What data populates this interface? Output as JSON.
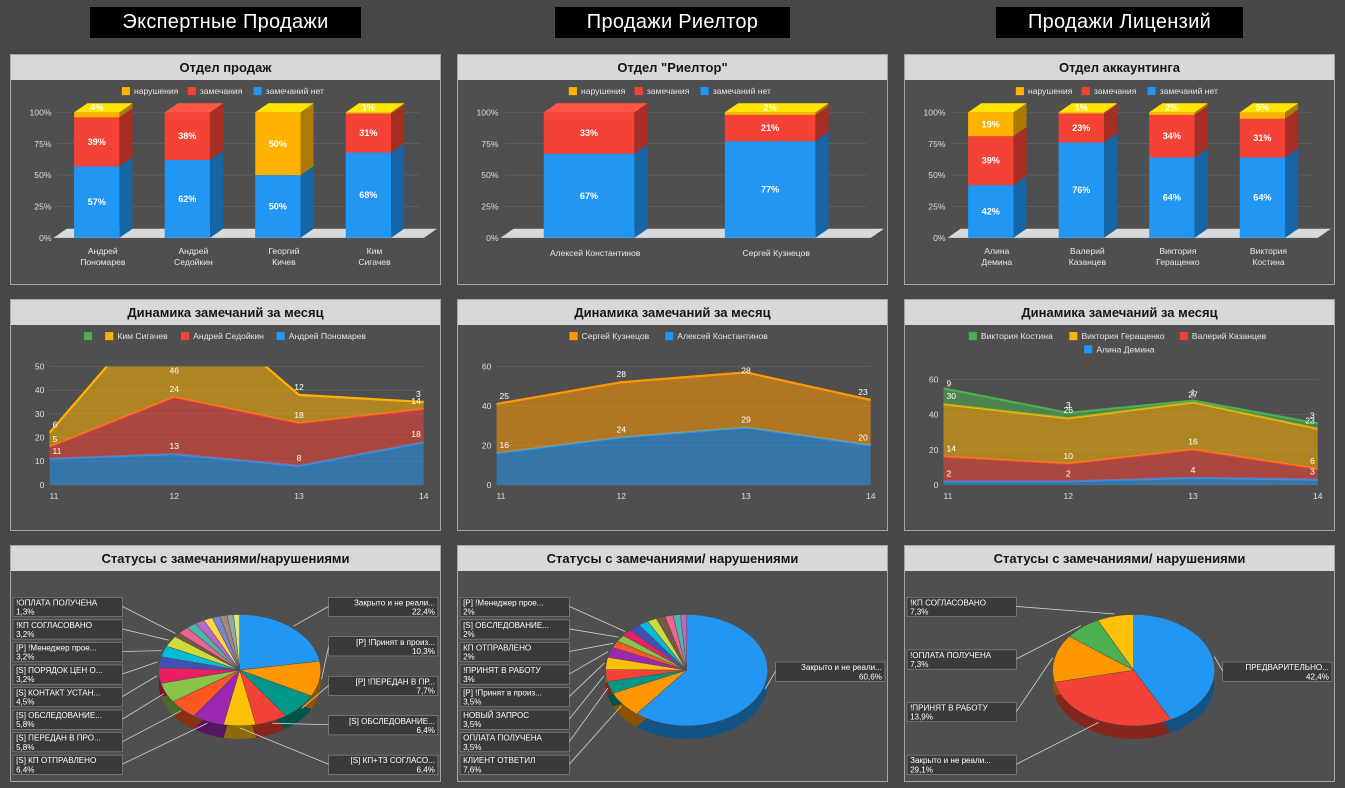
{
  "headers": [
    "Экспертные Продажи",
    "Продажи Риелтор",
    "Продажи Лицензий"
  ],
  "chart_data": [
    {
      "type": "bar",
      "title": "Отдел продаж",
      "stacked_percent": true,
      "y_ticks": [
        "0%",
        "25%",
        "50%",
        "75%",
        "100%"
      ],
      "legend": [
        {
          "label": "нарушения",
          "color": "#FFB300"
        },
        {
          "label": "замечания",
          "color": "#F44336"
        },
        {
          "label": "замечаний нет",
          "color": "#2196F3"
        }
      ],
      "categories": [
        "Андрей Пономарев",
        "Андрей Седойкин",
        "Георгий Кичев",
        "Ким Сигачев"
      ],
      "series": [
        {
          "name": "замечаний нет",
          "color": "#2196F3",
          "values": [
            57,
            62,
            50,
            68
          ]
        },
        {
          "name": "замечания",
          "color": "#F44336",
          "values": [
            39,
            38,
            0,
            31
          ]
        },
        {
          "name": "нарушения",
          "color": "#FFB300",
          "values": [
            4,
            0,
            50,
            1
          ]
        }
      ]
    },
    {
      "type": "bar",
      "title": "Отдел \"Риелтор\"",
      "stacked_percent": true,
      "y_ticks": [
        "0%",
        "25%",
        "50%",
        "75%",
        "100%"
      ],
      "legend": [
        {
          "label": "нарушения",
          "color": "#FFB300"
        },
        {
          "label": "замечания",
          "color": "#F44336"
        },
        {
          "label": "замечаний нет",
          "color": "#2196F3"
        }
      ],
      "categories": [
        "Алексей Константинов",
        "Сергей Кузнецов"
      ],
      "series": [
        {
          "name": "замечаний нет",
          "color": "#2196F3",
          "values": [
            67,
            77
          ]
        },
        {
          "name": "замечания",
          "color": "#F44336",
          "values": [
            33,
            21
          ]
        },
        {
          "name": "нарушения",
          "color": "#FFB300",
          "values": [
            0,
            2
          ]
        }
      ]
    },
    {
      "type": "bar",
      "title": "Отдел аккаунтинга",
      "stacked_percent": true,
      "y_ticks": [
        "0%",
        "25%",
        "50%",
        "75%",
        "100%"
      ],
      "legend": [
        {
          "label": "нарушения",
          "color": "#FFB300"
        },
        {
          "label": "замечания",
          "color": "#F44336"
        },
        {
          "label": "замечаний нет",
          "color": "#2196F3"
        }
      ],
      "categories": [
        "Алина Демина",
        "Валерий Казанцев",
        "Виктория Геращенко",
        "Виктория Костина"
      ],
      "series": [
        {
          "name": "замечаний нет",
          "color": "#2196F3",
          "values": [
            42,
            76,
            64,
            64
          ]
        },
        {
          "name": "замечания",
          "color": "#F44336",
          "values": [
            39,
            23,
            34,
            31
          ]
        },
        {
          "name": "нарушения",
          "color": "#FFB300",
          "values": [
            19,
            1,
            2,
            5
          ]
        }
      ]
    },
    {
      "type": "area",
      "title": "Динамика замечаний за месяц",
      "x": [
        11,
        12,
        13,
        14
      ],
      "ylim": [
        0,
        50
      ],
      "y_step": 10,
      "legend_rows": [
        [
          {
            "label": "",
            "color": "#4CAF50"
          },
          {
            "label": "Ким Сигачев",
            "color": "#FFB300"
          },
          {
            "label": "Андрей Седойкин",
            "color": "#F44336"
          },
          {
            "label": "Андрей Пономарев",
            "color": "#2196F3"
          }
        ]
      ],
      "series": [
        {
          "name": "Андрей Пономарев",
          "color": "#2196F3",
          "values": [
            11,
            13,
            8,
            18
          ]
        },
        {
          "name": "Андрей Седойкин",
          "color": "#F44336",
          "values": [
            5,
            24,
            18,
            14
          ]
        },
        {
          "name": "Ким Сигачев",
          "color": "#FFB300",
          "values": [
            6,
            46,
            12,
            3
          ]
        }
      ]
    },
    {
      "type": "area",
      "title": "Динамика замечаний за месяц",
      "x": [
        11,
        12,
        13,
        14
      ],
      "ylim": [
        0,
        60
      ],
      "y_step": 20,
      "legend_rows": [
        [
          {
            "label": "Сергей Кузнецов",
            "color": "#FF9800"
          },
          {
            "label": "Алексей Константинов",
            "color": "#2196F3"
          }
        ]
      ],
      "series": [
        {
          "name": "Алексей Константинов",
          "color": "#2196F3",
          "values": [
            16,
            24,
            29,
            20
          ]
        },
        {
          "name": "Сергей Кузнецов",
          "color": "#FF9800",
          "values": [
            25,
            28,
            28,
            23
          ]
        }
      ]
    },
    {
      "type": "area",
      "title": "Динамика замечаний за месяц",
      "x": [
        11,
        12,
        13,
        14
      ],
      "ylim": [
        0,
        60
      ],
      "y_step": 20,
      "legend_rows": [
        [
          {
            "label": "Виктория Костина",
            "color": "#4CAF50"
          },
          {
            "label": "Виктория Геращенко",
            "color": "#FFB300"
          },
          {
            "label": "Валерий Казанцев",
            "color": "#F44336"
          }
        ],
        [
          {
            "label": "Алина Демина",
            "color": "#2196F3"
          }
        ]
      ],
      "series": [
        {
          "name": "Алина Демина",
          "color": "#2196F3",
          "values": [
            2,
            2,
            4,
            3
          ]
        },
        {
          "name": "Валерий Казанцев",
          "color": "#F44336",
          "values": [
            14,
            10,
            16,
            6
          ]
        },
        {
          "name": "Виктория Геращенко",
          "color": "#FFB300",
          "values": [
            30,
            26,
            27,
            23
          ]
        },
        {
          "name": "Виктория Костина",
          "color": "#4CAF50",
          "values": [
            9,
            3,
            1,
            3
          ]
        }
      ]
    },
    {
      "type": "pie",
      "title": "Статусы с замечаниями/нарушениями",
      "slices": [
        {
          "label": "Закрыто и не реали...",
          "value": 22.4,
          "color": "#2196F3"
        },
        {
          "label": "[P] !Принят в произ...",
          "value": 10.3,
          "color": "#FF9800"
        },
        {
          "label": "[P] !ПЕРЕДАН В ПР...",
          "value": 7.7,
          "color": "#009688"
        },
        {
          "label": "[S] ОБСЛЕДОВАНИЕ...",
          "value": 6.4,
          "color": "#F44336"
        },
        {
          "label": "[S] КП+ТЗ СОГЛАСО...",
          "value": 6.4,
          "color": "#FFC107"
        },
        {
          "label": "[S] КП ОТПРАВЛЕНО",
          "value": 6.4,
          "color": "#9C27B0"
        },
        {
          "label": "[S] ПЕРЕДАН В ПРО...",
          "value": 5.8,
          "color": "#FF5722"
        },
        {
          "label": "[S] ОБСЛЕДОВАНИЕ...",
          "value": 5.8,
          "color": "#8BC34A"
        },
        {
          "label": "[S] КОНТАКТ УСТАН...",
          "value": 4.5,
          "color": "#E91E63"
        },
        {
          "label": "[S] ПОРЯДОК ЦЕН О...",
          "value": 3.2,
          "color": "#3F51B5"
        },
        {
          "label": "[P] !Менеджер прое...",
          "value": 3.2,
          "color": "#00BCD4"
        },
        {
          "label": "!КП СОГЛАСОВАНО",
          "value": 3.2,
          "color": "#CDDC39"
        },
        {
          "label": "!ОПЛАТА ПОЛУЧЕНА",
          "value": 1.3,
          "color": "#795548"
        },
        {
          "label": "",
          "value": 2.2,
          "color": "#F06292"
        },
        {
          "label": "",
          "value": 2.0,
          "color": "#4DB6AC"
        },
        {
          "label": "",
          "value": 1.9,
          "color": "#BA68C8"
        },
        {
          "label": "",
          "value": 1.8,
          "color": "#FFD54F"
        },
        {
          "label": "",
          "value": 1.6,
          "color": "#7986CB"
        },
        {
          "label": "",
          "value": 1.4,
          "color": "#A1887F"
        },
        {
          "label": "",
          "value": 1.3,
          "color": "#90A4AE"
        },
        {
          "label": "",
          "value": 1.2,
          "color": "#DCE775"
        }
      ]
    },
    {
      "type": "pie",
      "title": "Статусы с замечаниями/ нарушениями",
      "slices": [
        {
          "label": "Закрыто и не реали...",
          "value": 60.6,
          "color": "#2196F3"
        },
        {
          "label": "КЛИЕНТ ОТВЕТИЛ",
          "value": 7.6,
          "color": "#FF9800"
        },
        {
          "label": "ОПЛАТА ПОЛУЧЕНА",
          "value": 3.5,
          "color": "#009688"
        },
        {
          "label": "НОВЫЙ ЗАПРОС",
          "value": 3.5,
          "color": "#F44336"
        },
        {
          "label": "[P] !Принят в произ...",
          "value": 3.5,
          "color": "#FFC107"
        },
        {
          "label": "!ПРИНЯТ В РАБОТУ",
          "value": 3.0,
          "color": "#9C27B0"
        },
        {
          "label": "КП ОТПРАВЛЕНО",
          "value": 2.0,
          "color": "#FF5722"
        },
        {
          "label": "[S] ОБСЛЕДОВАНИЕ...",
          "value": 2.0,
          "color": "#8BC34A"
        },
        {
          "label": "[P] !Менеджер прое...",
          "value": 2.0,
          "color": "#E91E63"
        },
        {
          "label": "",
          "value": 2.3,
          "color": "#3F51B5"
        },
        {
          "label": "",
          "value": 2.0,
          "color": "#00BCD4"
        },
        {
          "label": "",
          "value": 1.9,
          "color": "#CDDC39"
        },
        {
          "label": "",
          "value": 1.8,
          "color": "#795548"
        },
        {
          "label": "",
          "value": 1.6,
          "color": "#F06292"
        },
        {
          "label": "",
          "value": 1.5,
          "color": "#4DB6AC"
        },
        {
          "label": "",
          "value": 1.2,
          "color": "#BA68C8"
        }
      ]
    },
    {
      "type": "pie",
      "title": "Статусы с замечаниями/ нарушениями",
      "slices": [
        {
          "label": "ПРЕДВАРИТЕЛЬНО...",
          "value": 42.4,
          "color": "#2196F3"
        },
        {
          "label": "Закрыто и не реали...",
          "value": 29.1,
          "color": "#F44336"
        },
        {
          "label": "!ПРИНЯТ В РАБОТУ",
          "value": 13.9,
          "color": "#FF9800"
        },
        {
          "label": "!ОПЛАТА ПОЛУЧЕНА",
          "value": 7.3,
          "color": "#4CAF50"
        },
        {
          "label": "!КП СОГЛАСОВАНО",
          "value": 7.3,
          "color": "#FFC107"
        }
      ]
    }
  ]
}
